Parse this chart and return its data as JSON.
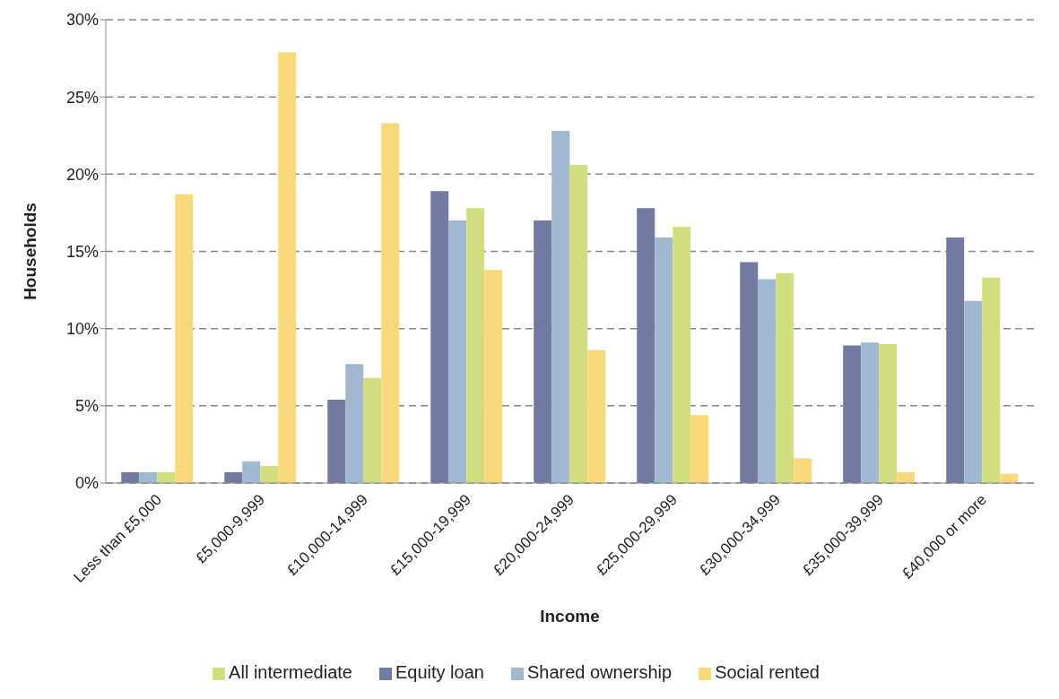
{
  "chart_data": {
    "type": "bar",
    "xlabel": "Income",
    "ylabel": "Households",
    "categories": [
      "Less than £5,000",
      "£5,000-9,999",
      "£10,000-14,999",
      "£15,000-19,999",
      "£20,000-24,999",
      "£25,000-29,999",
      "£30,000-34,999",
      "£35,000-39,999",
      "£40,000 or more"
    ],
    "series": [
      {
        "name": "Equity loan",
        "color": "#717ba1",
        "values": [
          0.7,
          0.7,
          5.4,
          18.9,
          17.0,
          17.8,
          14.3,
          8.9,
          15.9
        ]
      },
      {
        "name": "Shared ownership",
        "color": "#a0b8d0",
        "values": [
          0.7,
          1.4,
          7.7,
          17.0,
          22.8,
          15.9,
          13.2,
          9.1,
          11.8
        ]
      },
      {
        "name": "All intermediate",
        "color": "#d4dc80",
        "values": [
          0.7,
          1.1,
          6.8,
          17.8,
          20.6,
          16.6,
          13.6,
          9.0,
          13.3
        ]
      },
      {
        "name": "Social rented",
        "color": "#f9d87a",
        "values": [
          18.7,
          27.9,
          23.3,
          13.8,
          8.6,
          4.4,
          1.6,
          0.7,
          0.6
        ]
      }
    ],
    "ylim": [
      0,
      30
    ],
    "yticks": [
      {
        "value": 0,
        "label": "0%"
      },
      {
        "value": 5,
        "label": "5%"
      },
      {
        "value": 10,
        "label": "10%"
      },
      {
        "value": 15,
        "label": "15%"
      },
      {
        "value": 20,
        "label": "20%"
      },
      {
        "value": 25,
        "label": "25%"
      },
      {
        "value": 30,
        "label": "30%"
      }
    ],
    "grid": "y",
    "legend": "bottom"
  }
}
